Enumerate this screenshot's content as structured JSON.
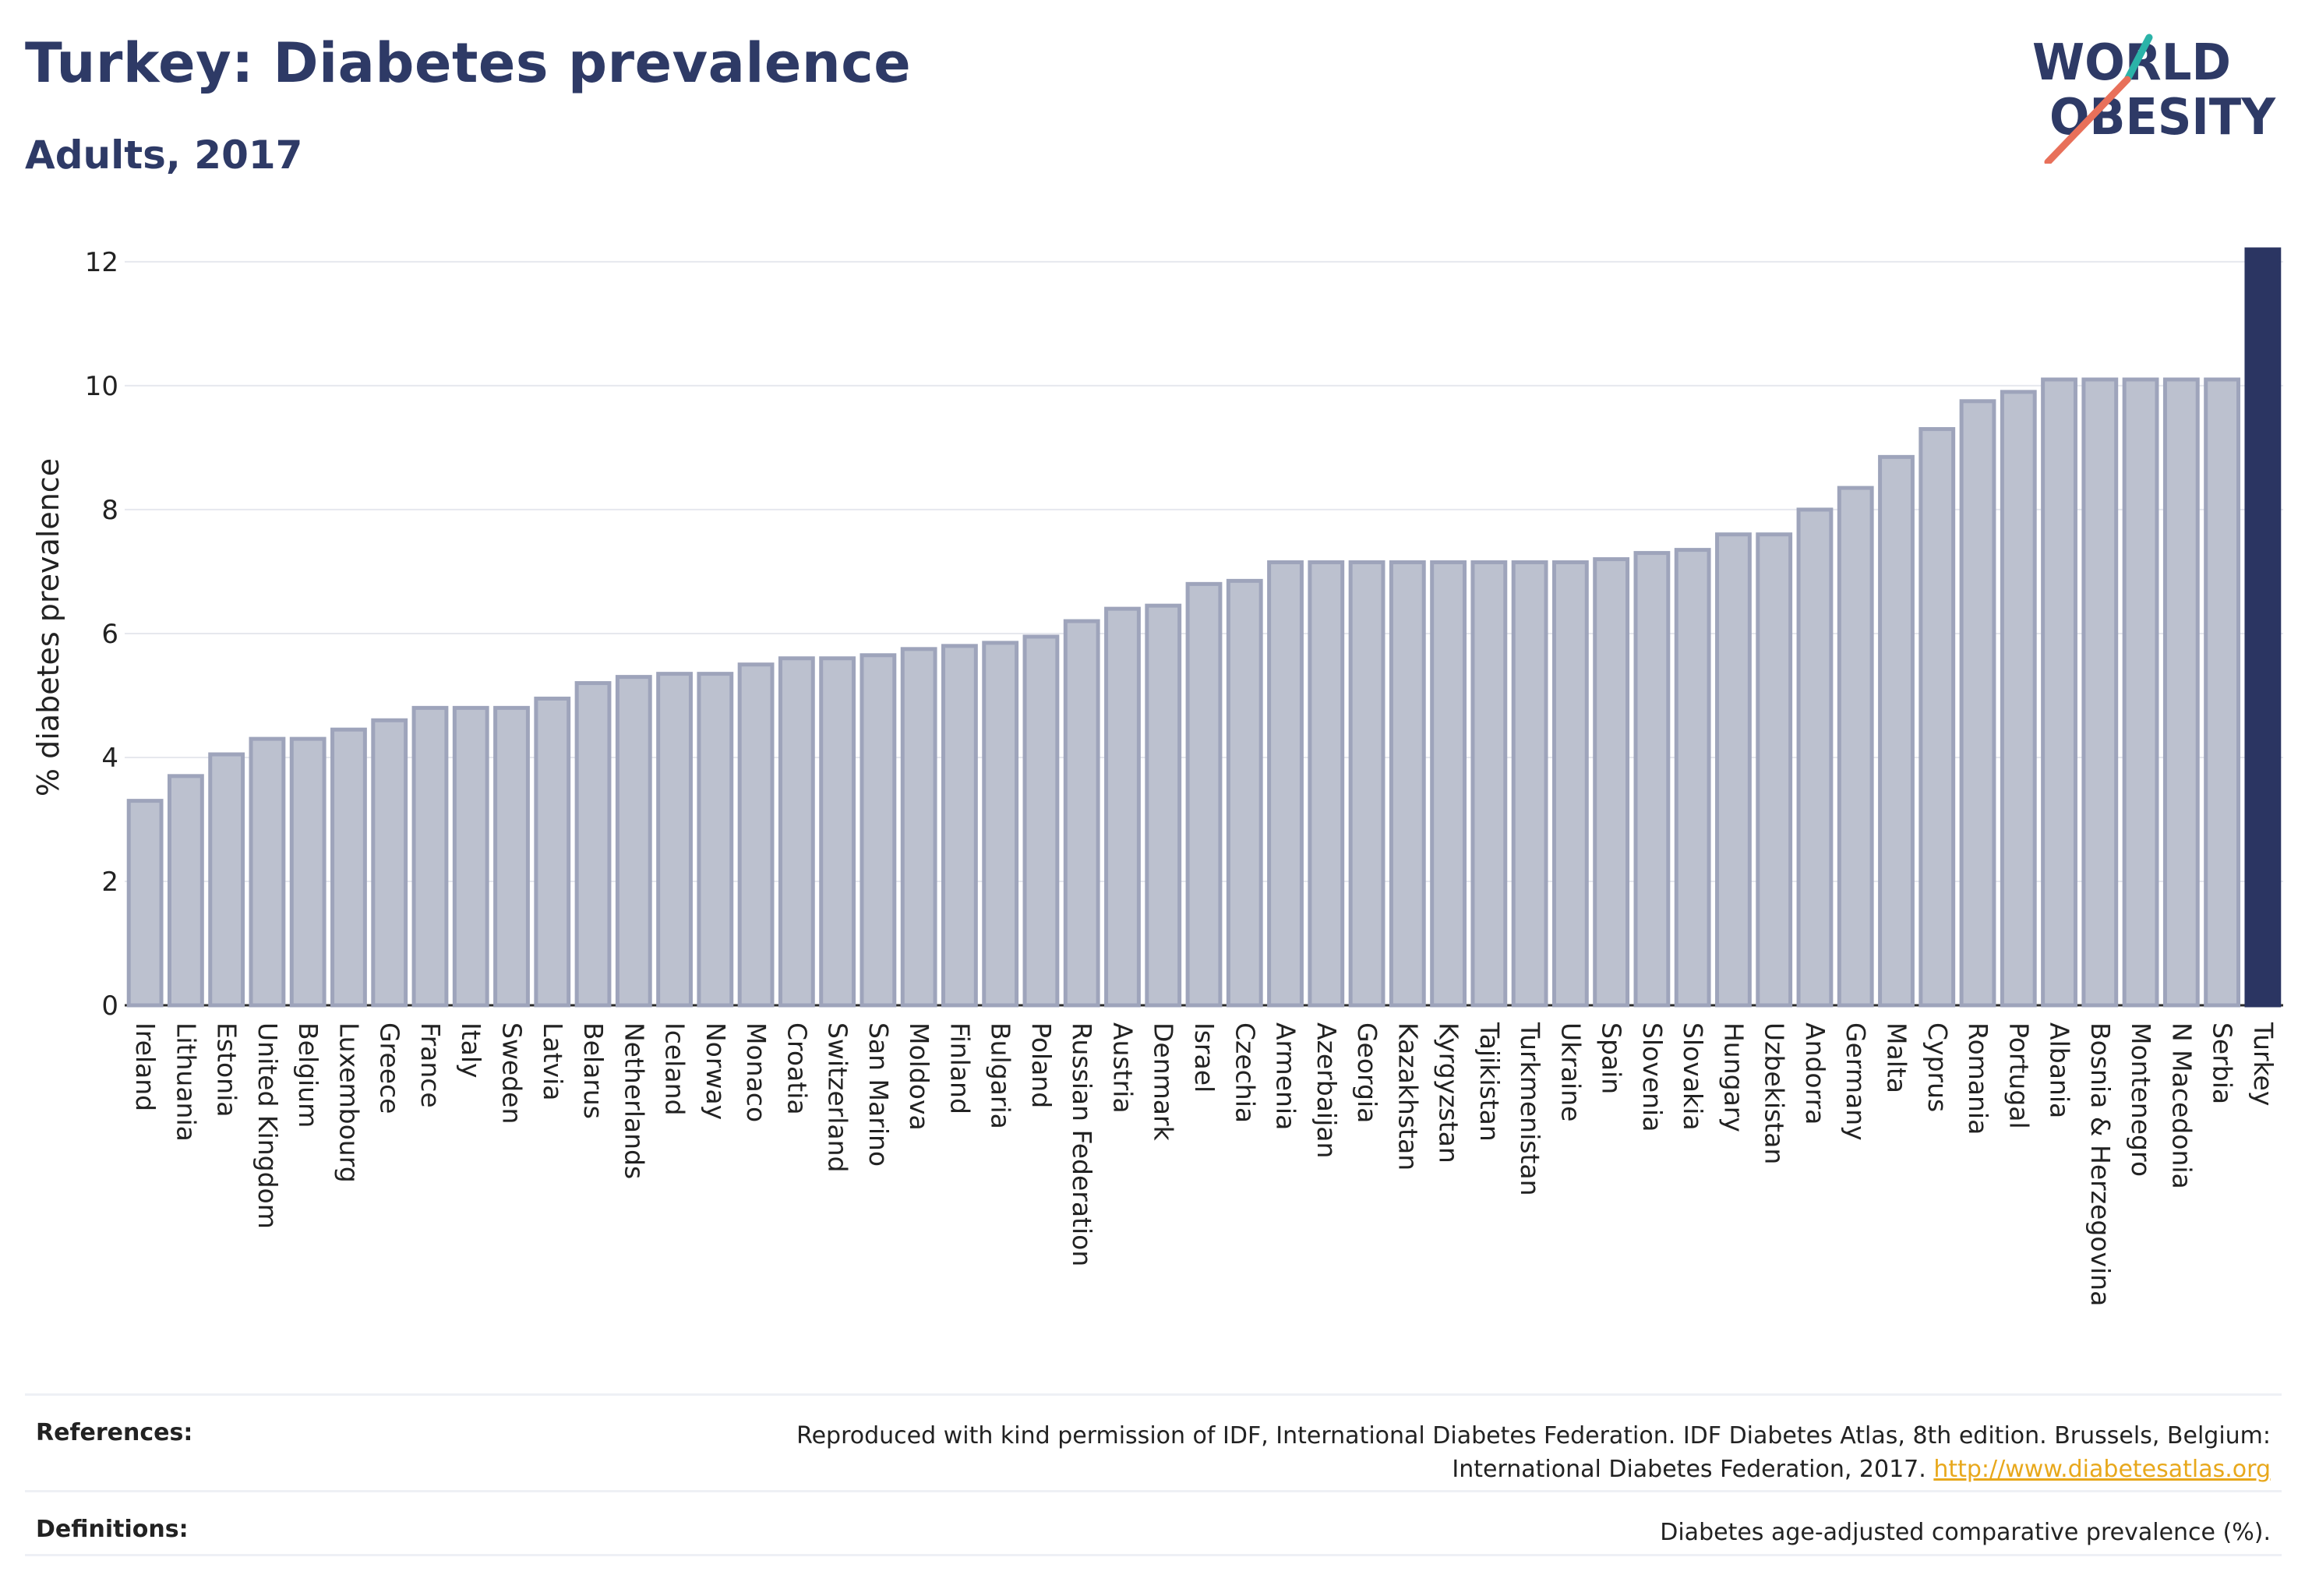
{
  "header": {
    "title": "Turkey: Diabetes prevalence",
    "subtitle": "Adults, 2017",
    "logo_text_line1": "WORLD",
    "logo_text_line2": "OBESITY"
  },
  "colors": {
    "bar_fill": "#bcc1cf",
    "bar_stroke": "#9ea4bb",
    "highlight_bar": "#2b3562",
    "grid": "#e6e8ee",
    "logo_navy": "#2e3a66",
    "logo_teal": "#2bb3a8",
    "logo_coral": "#e8705a",
    "link": "#e8a81c"
  },
  "chart_data": {
    "type": "bar",
    "title": "Turkey: Diabetes prevalence",
    "subtitle": "Adults, 2017",
    "xlabel": "",
    "ylabel": "% diabetes prevalence",
    "ylim": [
      0,
      12.2
    ],
    "yticks": [
      0,
      2,
      4,
      6,
      8,
      10,
      12
    ],
    "grid": true,
    "highlight": "Turkey",
    "categories": [
      "Ireland",
      "Lithuania",
      "Estonia",
      "United Kingdom",
      "Belgium",
      "Luxembourg",
      "Greece",
      "France",
      "Italy",
      "Sweden",
      "Latvia",
      "Belarus",
      "Netherlands",
      "Iceland",
      "Norway",
      "Monaco",
      "Croatia",
      "Switzerland",
      "San Marino",
      "Moldova",
      "Finland",
      "Bulgaria",
      "Poland",
      "Russian Federation",
      "Austria",
      "Denmark",
      "Israel",
      "Czechia",
      "Armenia",
      "Azerbaijan",
      "Georgia",
      "Kazakhstan",
      "Kyrgyzstan",
      "Tajikistan",
      "Turkmenistan",
      "Ukraine",
      "Spain",
      "Slovenia",
      "Slovakia",
      "Hungary",
      "Uzbekistan",
      "Andorra",
      "Germany",
      "Malta",
      "Cyprus",
      "Romania",
      "Portugal",
      "Albania",
      "Bosnia & Herzegovina",
      "Montenegro",
      "N Macedonia",
      "Serbia",
      "Turkey"
    ],
    "values": [
      3.3,
      3.7,
      4.05,
      4.3,
      4.3,
      4.45,
      4.6,
      4.8,
      4.8,
      4.8,
      4.95,
      5.2,
      5.3,
      5.35,
      5.35,
      5.5,
      5.6,
      5.6,
      5.65,
      5.75,
      5.8,
      5.85,
      5.95,
      6.2,
      6.4,
      6.45,
      6.8,
      6.85,
      7.15,
      7.15,
      7.15,
      7.15,
      7.15,
      7.15,
      7.15,
      7.15,
      7.2,
      7.3,
      7.35,
      7.6,
      7.6,
      8.0,
      8.35,
      8.85,
      9.3,
      9.75,
      9.9,
      10.1,
      10.1,
      10.1,
      10.1,
      10.1,
      12.2
    ]
  },
  "footer": {
    "references_label": "References:",
    "references_text_1": "Reproduced with kind permission of IDF, International Diabetes Federation. IDF Diabetes Atlas, 8th edition. Brussels, Belgium:",
    "references_text_2": "International Diabetes Federation, 2017.",
    "references_link": "http://www.diabetesatlas.org",
    "definitions_label": "Definitions:",
    "definitions_text": "Diabetes age-adjusted comparative prevalence (%)."
  }
}
